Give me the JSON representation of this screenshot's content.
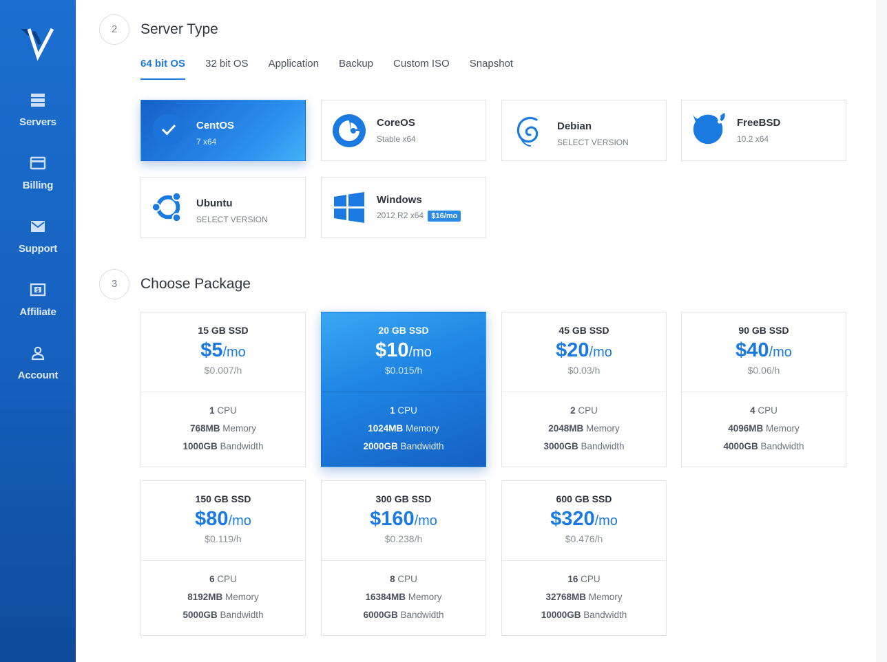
{
  "sidebar": {
    "items": [
      {
        "label": "Servers",
        "icon": "servers-icon"
      },
      {
        "label": "Billing",
        "icon": "credit-card-icon"
      },
      {
        "label": "Support",
        "icon": "envelope-icon"
      },
      {
        "label": "Affiliate",
        "icon": "dollar-bill-icon"
      },
      {
        "label": "Account",
        "icon": "user-icon"
      }
    ]
  },
  "server_type": {
    "step": "2",
    "title": "Server Type",
    "tabs": [
      "64 bit OS",
      "32 bit OS",
      "Application",
      "Backup",
      "Custom ISO",
      "Snapshot"
    ],
    "active_tab": "64 bit OS",
    "os": [
      {
        "name": "CentOS",
        "sub": "7  x64",
        "selected": true
      },
      {
        "name": "CoreOS",
        "sub": "Stable  x64"
      },
      {
        "name": "Debian",
        "sub": "SELECT VERSION"
      },
      {
        "name": "FreeBSD",
        "sub": "10.2  x64"
      },
      {
        "name": "Ubuntu",
        "sub": "SELECT VERSION"
      },
      {
        "name": "Windows",
        "sub": "2012 R2  x64",
        "badge": "$16/mo"
      }
    ]
  },
  "package": {
    "step": "3",
    "title": "Choose Package",
    "cpu_label": "CPU",
    "memory_label": "Memory",
    "bandwidth_label": "Bandwidth",
    "plans": [
      {
        "size": "15 GB SSD",
        "price": "$5",
        "per": "/mo",
        "hourly": "$0.007/h",
        "cpu": "1",
        "memory": "768MB",
        "bandwidth": "1000GB"
      },
      {
        "size": "20 GB SSD",
        "price": "$10",
        "per": "/mo",
        "hourly": "$0.015/h",
        "cpu": "1",
        "memory": "1024MB",
        "bandwidth": "2000GB",
        "selected": true
      },
      {
        "size": "45 GB SSD",
        "price": "$20",
        "per": "/mo",
        "hourly": "$0.03/h",
        "cpu": "2",
        "memory": "2048MB",
        "bandwidth": "3000GB"
      },
      {
        "size": "90 GB SSD",
        "price": "$40",
        "per": "/mo",
        "hourly": "$0.06/h",
        "cpu": "4",
        "memory": "4096MB",
        "bandwidth": "4000GB"
      },
      {
        "size": "150 GB SSD",
        "price": "$80",
        "per": "/mo",
        "hourly": "$0.119/h",
        "cpu": "6",
        "memory": "8192MB",
        "bandwidth": "5000GB"
      },
      {
        "size": "300 GB SSD",
        "price": "$160",
        "per": "/mo",
        "hourly": "$0.238/h",
        "cpu": "8",
        "memory": "16384MB",
        "bandwidth": "6000GB"
      },
      {
        "size": "600 GB SSD",
        "price": "$320",
        "per": "/mo",
        "hourly": "$0.476/h",
        "cpu": "16",
        "memory": "32768MB",
        "bandwidth": "10000GB"
      }
    ]
  },
  "colors": {
    "accent": "#1b7ae0",
    "sidebar": "#1660bd"
  }
}
